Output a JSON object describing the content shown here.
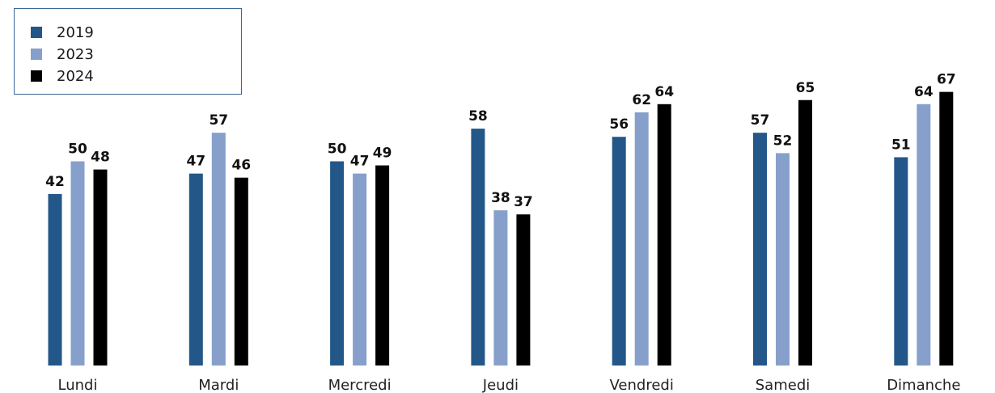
{
  "chart_data": {
    "type": "bar",
    "categories": [
      "Lundi",
      "Mardi",
      "Mercredi",
      "Jeudi",
      "Vendredi",
      "Samedi",
      "Dimanche"
    ],
    "series": [
      {
        "name": "2019",
        "color": "#235789",
        "values": [
          42,
          47,
          50,
          58,
          56,
          57,
          51
        ]
      },
      {
        "name": "2023",
        "color": "#879fcb",
        "values": [
          50,
          57,
          47,
          38,
          62,
          52,
          64
        ]
      },
      {
        "name": "2024",
        "color": "#000000",
        "values": [
          48,
          46,
          49,
          37,
          64,
          65,
          67
        ]
      }
    ],
    "title": "",
    "xlabel": "",
    "ylabel": "",
    "ylim": [
      0,
      70
    ],
    "grid": false,
    "legend_position": "top-left",
    "data_labels": true
  }
}
